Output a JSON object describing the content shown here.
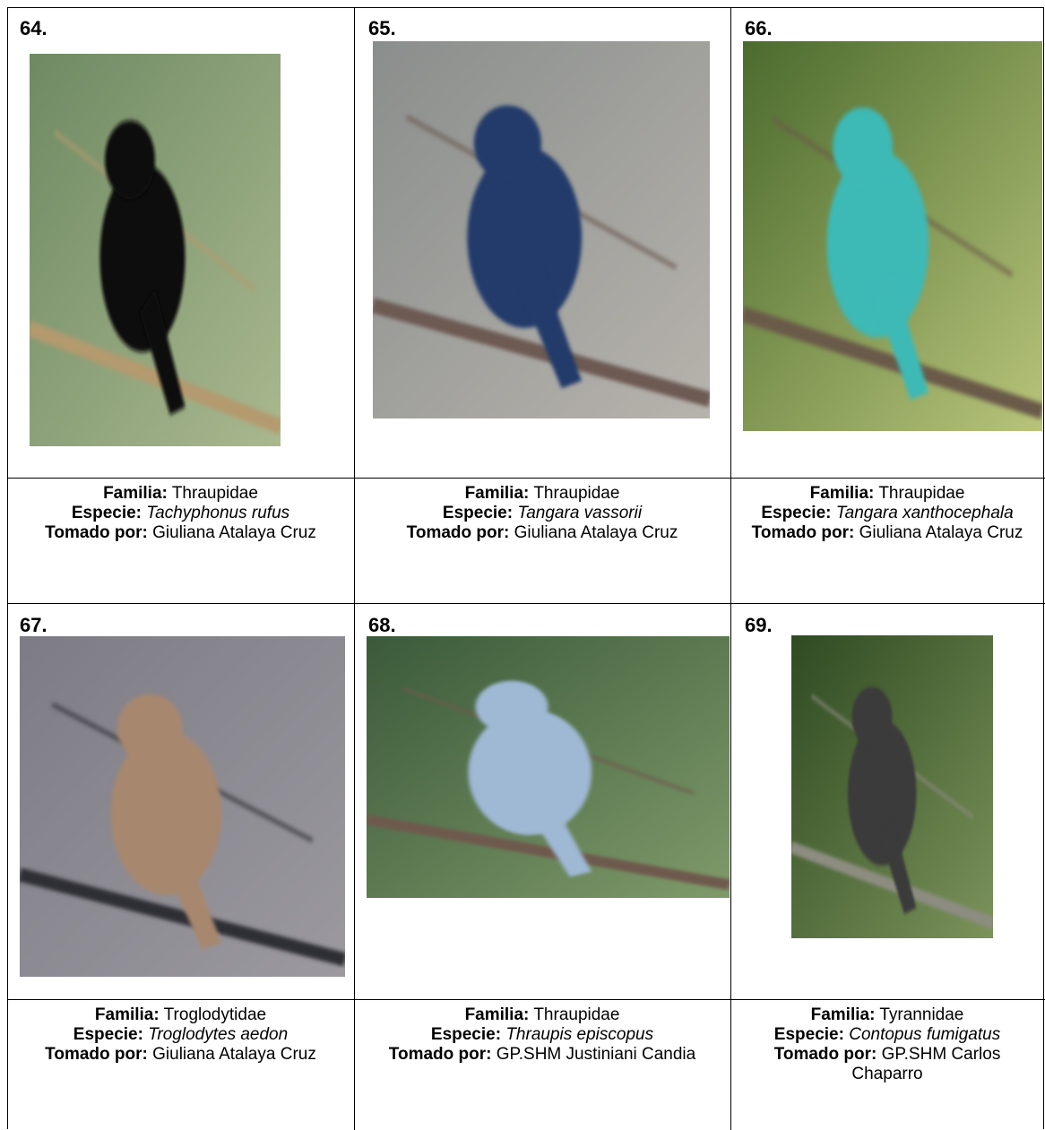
{
  "cells": [
    {
      "number": "64.",
      "family_label": "Familia:",
      "family": "Thraupidae",
      "species_label": "Especie:",
      "species": "Tachyphonus rufus",
      "credit_label": "Tomado por:",
      "credit": "Giuliana Atalaya Cruz"
    },
    {
      "number": "65.",
      "family_label": "Familia:",
      "family": "Thraupidae",
      "species_label": "Especie:",
      "species": "Tangara vassorii",
      "credit_label": "Tomado por:",
      "credit": "Giuliana Atalaya Cruz"
    },
    {
      "number": "66.",
      "family_label": "Familia:",
      "family": "Thraupidae",
      "species_label": "Especie:",
      "species": "Tangara xanthocephala",
      "credit_label": "Tomado por:",
      "credit": "Giuliana Atalaya Cruz"
    },
    {
      "number": "67.",
      "family_label": "Familia:",
      "family": "Troglodytidae",
      "species_label": "Especie:",
      "species": "Troglodytes aedon",
      "credit_label": "Tomado por:",
      "credit": "Giuliana Atalaya Cruz"
    },
    {
      "number": "68.",
      "family_label": "Familia:",
      "family": "Thraupidae",
      "species_label": "Especie:",
      "species": "Thraupis episcopus",
      "credit_label": "Tomado por:",
      "credit": "GP.SHM Justiniani Candia"
    },
    {
      "number": "69.",
      "family_label": "Familia:",
      "family": "Tyrannidae",
      "species_label": "Especie:",
      "species": "Contopus fumigatus",
      "credit_label": "Tomado por:",
      "credit": "GP.SHM Carlos Chaparro"
    }
  ]
}
